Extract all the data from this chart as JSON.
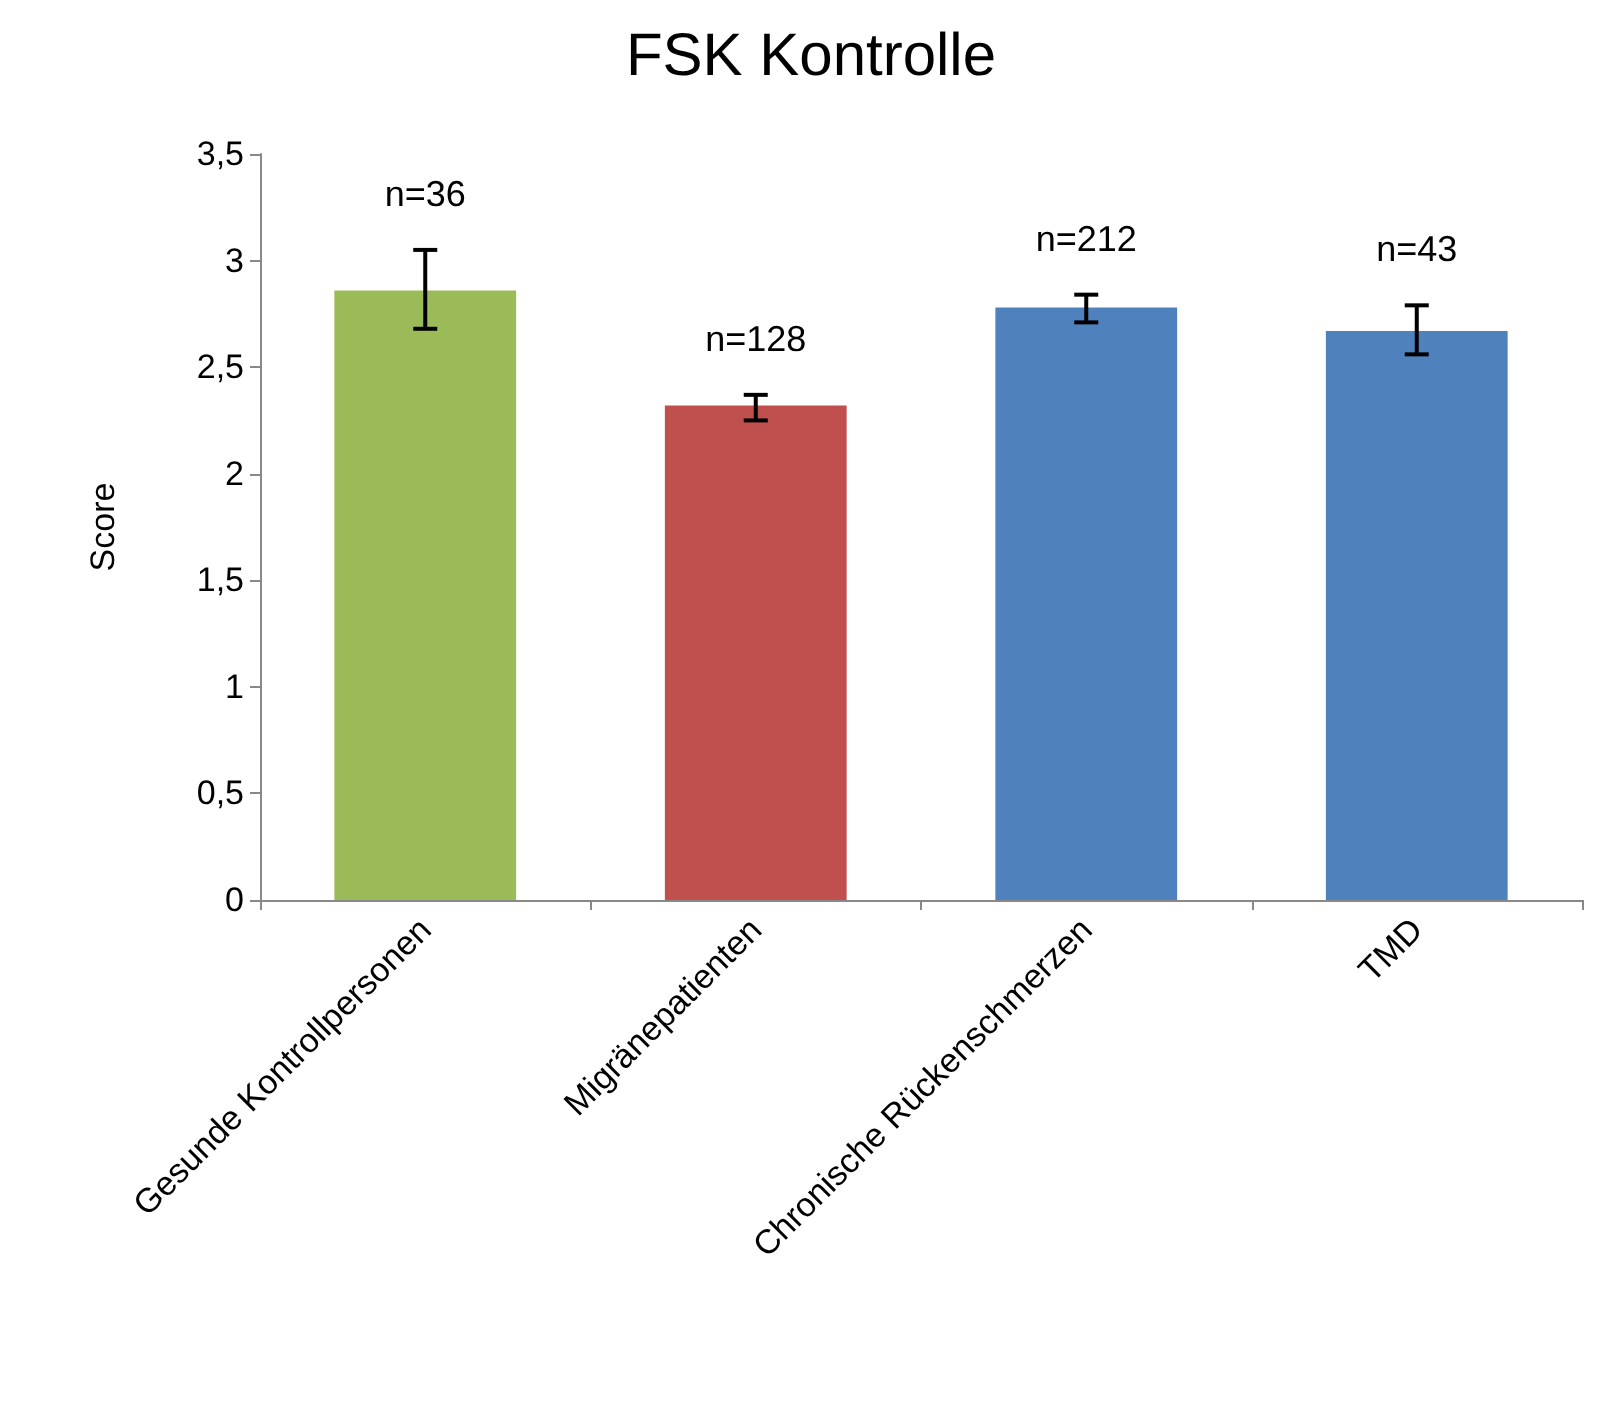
{
  "chart_data": {
    "type": "bar",
    "title": "FSK Kontrolle",
    "ylabel": "Score",
    "categories": [
      "Gesunde Kontrollpersonen",
      "Migränepatienten",
      "Chronische Rückenschmerzen",
      "TMD"
    ],
    "values": [
      2.86,
      2.32,
      2.78,
      2.67
    ],
    "colors": [
      "#9bbb59",
      "#c0504d",
      "#4f81bd",
      "#4f81bd"
    ],
    "errors": [
      [
        2.68,
        3.05
      ],
      [
        2.25,
        2.37
      ],
      [
        2.71,
        2.84
      ],
      [
        2.56,
        2.79
      ]
    ],
    "ylim": [
      0,
      3.5
    ],
    "yticks": [
      0,
      {
        "value": 0.5,
        "label": "0,5"
      },
      1,
      {
        "value": 1.5,
        "label": "1,5"
      },
      2,
      {
        "value": 2.5,
        "label": "2,5"
      },
      3,
      {
        "value": 3.5,
        "label": "3,5"
      }
    ],
    "annotations": [
      "n=36",
      "n=128",
      "n=212",
      "n=43"
    ],
    "grid": false
  }
}
